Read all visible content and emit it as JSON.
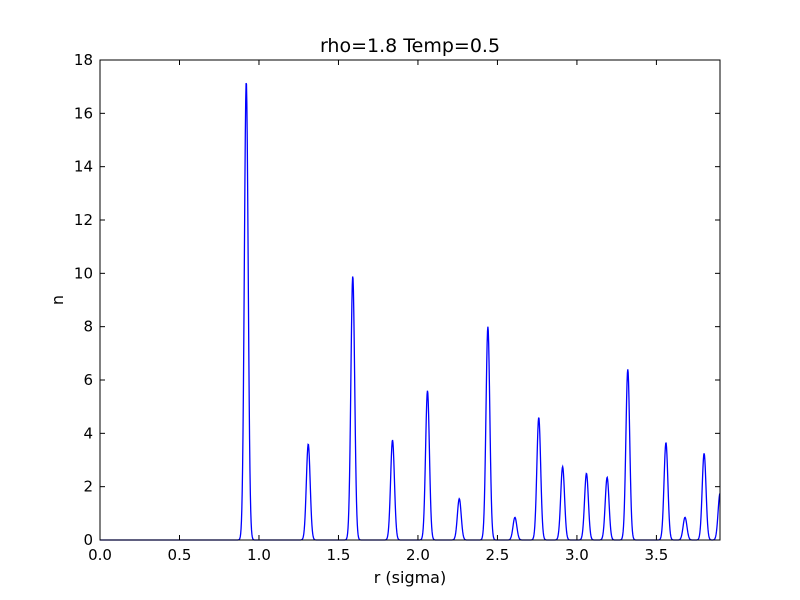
{
  "chart_data": {
    "type": "line",
    "title": "rho=1.8 Temp=0.5",
    "xlabel": "r (sigma)",
    "ylabel": "n",
    "xlim": [
      0.0,
      3.9
    ],
    "ylim": [
      0,
      18
    ],
    "xticks": [
      "0.0",
      "0.5",
      "1.0",
      "1.5",
      "2.0",
      "2.5",
      "3.0",
      "3.5"
    ],
    "yticks": [
      "0",
      "2",
      "4",
      "6",
      "8",
      "10",
      "12",
      "14",
      "16",
      "18"
    ],
    "grid": false,
    "line_color": "#0000ff",
    "peaks": [
      {
        "x": 0.92,
        "y": 17.2
      },
      {
        "x": 1.31,
        "y": 3.6
      },
      {
        "x": 1.59,
        "y": 9.9
      },
      {
        "x": 1.84,
        "y": 3.75
      },
      {
        "x": 2.06,
        "y": 5.6
      },
      {
        "x": 2.26,
        "y": 1.55
      },
      {
        "x": 2.44,
        "y": 8.0
      },
      {
        "x": 2.61,
        "y": 0.85
      },
      {
        "x": 2.76,
        "y": 4.6
      },
      {
        "x": 2.91,
        "y": 2.75
      },
      {
        "x": 3.06,
        "y": 2.5
      },
      {
        "x": 3.19,
        "y": 2.35
      },
      {
        "x": 3.32,
        "y": 6.4
      },
      {
        "x": 3.56,
        "y": 3.65
      },
      {
        "x": 3.68,
        "y": 0.85
      },
      {
        "x": 3.8,
        "y": 3.25
      },
      {
        "x": 3.9,
        "y": 1.75
      }
    ]
  }
}
